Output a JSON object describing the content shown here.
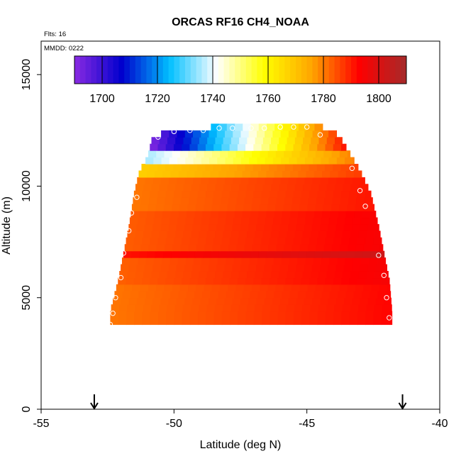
{
  "chart_data": {
    "type": "heatmap",
    "title": "ORCAS RF16 CH4_NOAA",
    "flights_label": "Flts: 16",
    "date_label": "MMDD: 0222",
    "xlabel": "Latitude (deg N)",
    "ylabel": "Altitude (m)",
    "xlim": [
      -55,
      -40
    ],
    "ylim": [
      0,
      16500
    ],
    "x_ticks": [
      -55,
      -50,
      -45,
      -40
    ],
    "y_ticks": [
      0,
      5000,
      10000,
      15000
    ],
    "colorbar": {
      "range": [
        1690,
        1810
      ],
      "ticks": [
        1700,
        1720,
        1740,
        1760,
        1780,
        1800
      ],
      "colors": [
        "#8a2be2",
        "#0000cd",
        "#00bfff",
        "#ffffff",
        "#ffff00",
        "#ffa500",
        "#ff0000",
        "#a52a2a"
      ]
    },
    "curtain_bounds": [
      {
        "alt": 3800,
        "lat_min": -52.4,
        "lat_max": -41.8
      },
      {
        "alt": 4400,
        "lat_min": -52.4,
        "lat_max": -41.8
      },
      {
        "alt": 5800,
        "lat_min": -52.1,
        "lat_max": -41.9
      },
      {
        "alt": 7000,
        "lat_min": -51.9,
        "lat_max": -42.1
      },
      {
        "alt": 8200,
        "lat_min": -51.7,
        "lat_max": -42.3
      },
      {
        "alt": 9700,
        "lat_min": -51.5,
        "lat_max": -42.6
      },
      {
        "alt": 10700,
        "lat_min": -51.3,
        "lat_max": -43.0
      },
      {
        "alt": 11300,
        "lat_min": -51.0,
        "lat_max": -43.3
      },
      {
        "alt": 12300,
        "lat_min": -50.8,
        "lat_max": -43.8
      },
      {
        "alt": 12700,
        "lat_min": -48.3,
        "lat_max": -44.5
      }
    ],
    "ch4_layers": [
      {
        "alt_min": 3800,
        "alt_max": 5500,
        "value": 1784,
        "east_gradient": 1.0
      },
      {
        "alt_min": 5500,
        "alt_max": 6700,
        "value": 1786,
        "east_gradient": 1.0
      },
      {
        "alt_min": 6700,
        "alt_max": 7200,
        "value": 1794,
        "east_gradient": 1.0
      },
      {
        "alt_min": 7200,
        "alt_max": 9000,
        "value": 1786,
        "east_gradient": 1.0
      },
      {
        "alt_min": 9000,
        "alt_max": 10300,
        "value": 1783,
        "east_gradient": 1.0
      },
      {
        "alt_min": 10300,
        "alt_max": 11000,
        "value": 1772,
        "east_gradient": 2.0
      },
      {
        "alt_min": 11000,
        "alt_max": 11500,
        "value": 1745,
        "east_gradient": 5.0
      },
      {
        "alt_min": 11500,
        "alt_max": 12700,
        "value": 1712,
        "east_gradient": 12.0
      }
    ],
    "flight_track": [
      {
        "lat": -52.4,
        "alt": 3800
      },
      {
        "lat": -52.3,
        "alt": 4300
      },
      {
        "lat": -52.2,
        "alt": 5000
      },
      {
        "lat": -52.0,
        "alt": 5900
      },
      {
        "lat": -51.9,
        "alt": 7000
      },
      {
        "lat": -51.7,
        "alt": 8000
      },
      {
        "lat": -51.6,
        "alt": 8800
      },
      {
        "lat": -51.4,
        "alt": 9500
      },
      {
        "lat": -50.6,
        "alt": 12200
      },
      {
        "lat": -50.0,
        "alt": 12450
      },
      {
        "lat": -49.4,
        "alt": 12500
      },
      {
        "lat": -48.9,
        "alt": 12500
      },
      {
        "lat": -48.3,
        "alt": 12600
      },
      {
        "lat": -47.8,
        "alt": 12600
      },
      {
        "lat": -47.1,
        "alt": 12600
      },
      {
        "lat": -46.6,
        "alt": 12600
      },
      {
        "lat": -46.0,
        "alt": 12650
      },
      {
        "lat": -45.5,
        "alt": 12650
      },
      {
        "lat": -45.0,
        "alt": 12650
      },
      {
        "lat": -44.5,
        "alt": 12300
      },
      {
        "lat": -43.3,
        "alt": 10800
      },
      {
        "lat": -43.0,
        "alt": 9800
      },
      {
        "lat": -42.8,
        "alt": 9100
      },
      {
        "lat": -42.3,
        "alt": 6900
      },
      {
        "lat": -42.1,
        "alt": 6000
      },
      {
        "lat": -42.0,
        "alt": 5000
      },
      {
        "lat": -41.9,
        "alt": 4100
      }
    ],
    "arrows": [
      {
        "lat": -53.0,
        "label": "takeoff-marker"
      },
      {
        "lat": -41.4,
        "label": "landing-marker"
      }
    ]
  }
}
